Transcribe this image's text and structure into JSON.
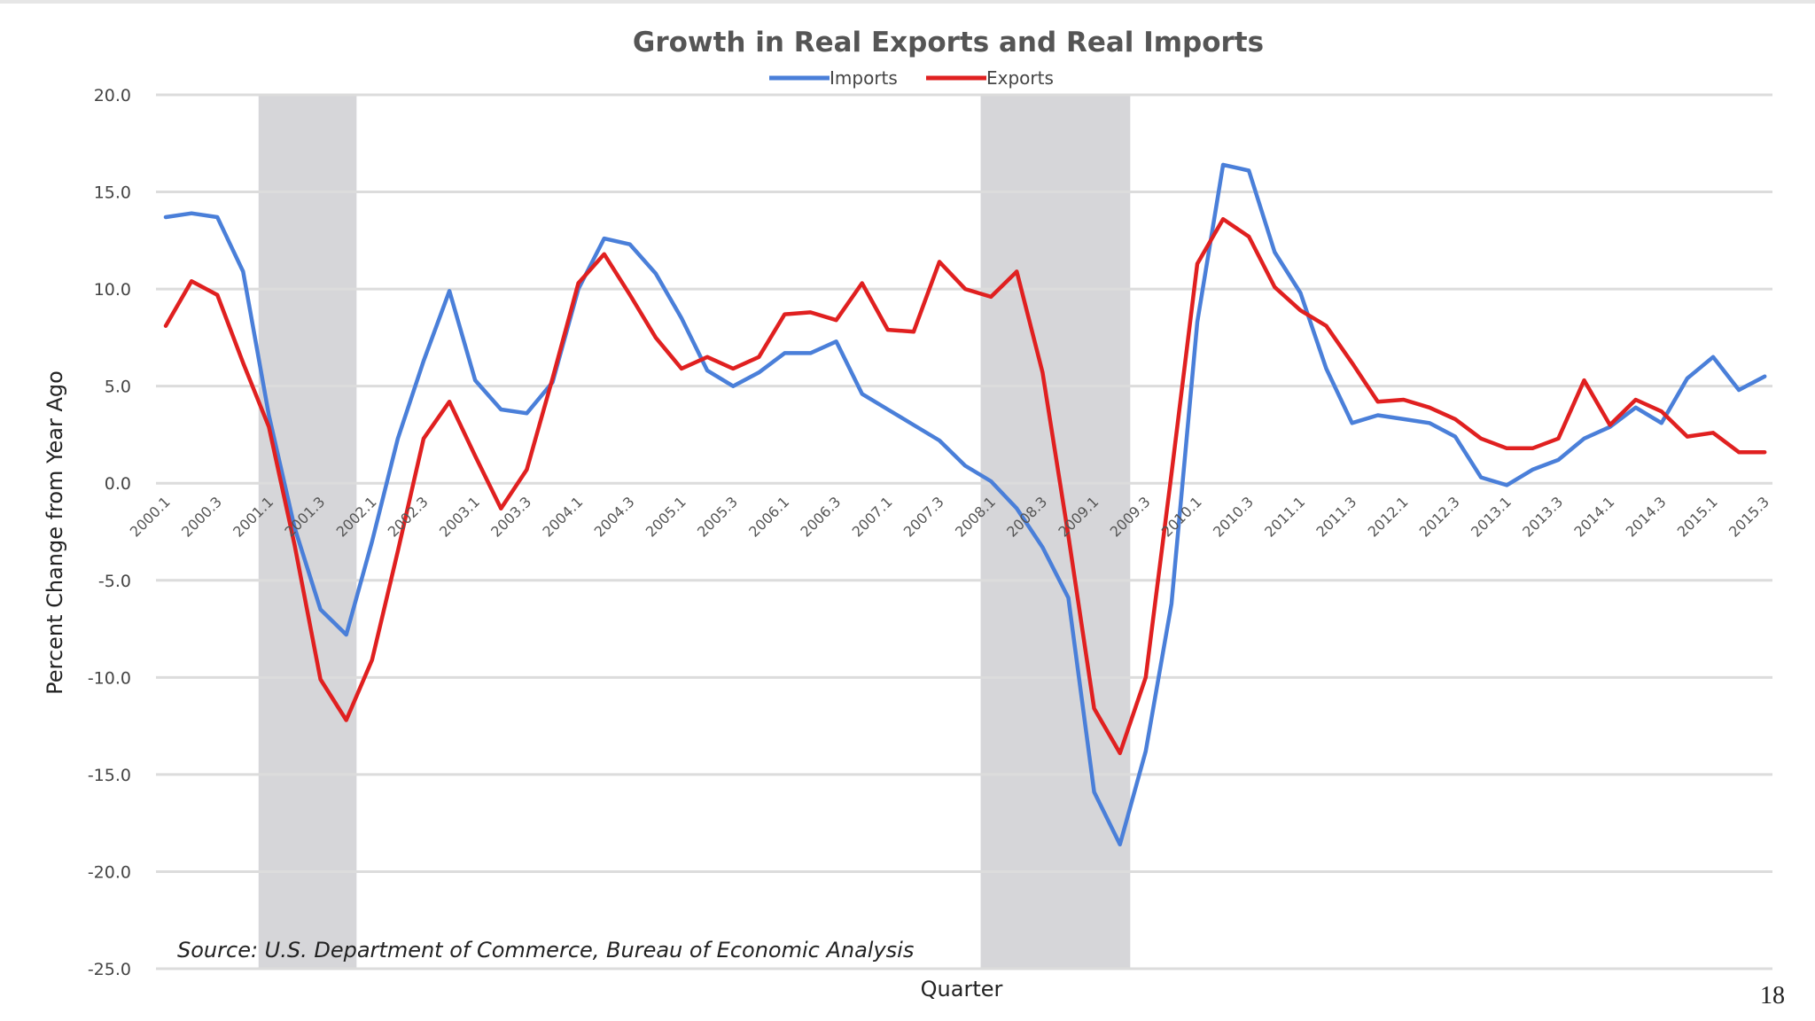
{
  "page": {
    "number": "18"
  },
  "chart_data": {
    "type": "line",
    "title": "Growth in Real Exports and Real Imports",
    "xlabel": "Quarter",
    "ylabel": "Percent Change from Year Ago",
    "ylim": [
      -25,
      20
    ],
    "yticks": [
      20,
      15,
      10,
      5,
      0,
      -5,
      -10,
      -15,
      -20,
      -25
    ],
    "ytick_labels": [
      "20.0",
      "15.0",
      "10.0",
      "5.0",
      "0.0",
      "-5.0",
      "-10.0",
      "-15.0",
      "-20.0",
      "-25.0"
    ],
    "grid": true,
    "legend_position": "top-center",
    "source": "Source: U.S. Department of Commerce, Bureau of Economic Analysis",
    "tick_labels": [
      "2000.1",
      "2000.3",
      "2001.1",
      "2001.3",
      "2002.1",
      "2002.3",
      "2003.1",
      "2003.3",
      "2004.1",
      "2004.3",
      "2005.1",
      "2005.3",
      "2006.1",
      "2006.3",
      "2007.1",
      "2007.3",
      "2008.1",
      "2008.3",
      "2009.1",
      "2009.3",
      "2010.1",
      "2010.3",
      "2011.1",
      "2011.3",
      "2012.1",
      "2012.3",
      "2013.1",
      "2013.3",
      "2014.1",
      "2014.3",
      "2015.1",
      "2015.3"
    ],
    "recessions": [
      {
        "start": "2001.1",
        "end": "2001.4"
      },
      {
        "start": "2008.1",
        "end": "2009.2"
      }
    ],
    "categories": [
      "2000.1",
      "2000.2",
      "2000.3",
      "2000.4",
      "2001.1",
      "2001.2",
      "2001.3",
      "2001.4",
      "2002.1",
      "2002.2",
      "2002.3",
      "2002.4",
      "2003.1",
      "2003.2",
      "2003.3",
      "2003.4",
      "2004.1",
      "2004.2",
      "2004.3",
      "2004.4",
      "2005.1",
      "2005.2",
      "2005.3",
      "2005.4",
      "2006.1",
      "2006.2",
      "2006.3",
      "2006.4",
      "2007.1",
      "2007.2",
      "2007.3",
      "2007.4",
      "2008.1",
      "2008.2",
      "2008.3",
      "2008.4",
      "2009.1",
      "2009.2",
      "2009.3",
      "2009.4",
      "2010.1",
      "2010.2",
      "2010.3",
      "2010.4",
      "2011.1",
      "2011.2",
      "2011.3",
      "2011.4",
      "2012.1",
      "2012.2",
      "2012.3",
      "2012.4",
      "2013.1",
      "2013.2",
      "2013.3",
      "2013.4",
      "2014.1",
      "2014.2",
      "2014.3",
      "2014.4",
      "2015.1",
      "2015.2",
      "2015.3"
    ],
    "series": [
      {
        "name": "Imports",
        "color": "#4a7fd9",
        "values": [
          13.7,
          13.9,
          13.7,
          10.9,
          3.5,
          -2.3,
          -6.5,
          -7.8,
          -3.0,
          2.3,
          6.3,
          9.9,
          5.3,
          3.8,
          3.6,
          5.2,
          10.0,
          12.6,
          12.3,
          10.8,
          8.5,
          5.8,
          5.0,
          5.7,
          6.7,
          6.7,
          7.3,
          4.6,
          3.8,
          3.0,
          2.2,
          0.9,
          0.1,
          -1.3,
          -3.3,
          -5.9,
          -15.9,
          -18.6,
          -13.8,
          -6.2,
          8.3,
          16.4,
          16.1,
          11.9,
          9.8,
          5.9,
          3.1,
          3.5,
          3.3,
          3.1,
          2.4,
          0.3,
          -0.1,
          0.7,
          1.2,
          2.3,
          2.9,
          3.9,
          3.1,
          5.4,
          6.5,
          4.8,
          5.5
        ]
      },
      {
        "name": "Exports",
        "color": "#e02020",
        "values": [
          8.1,
          10.4,
          9.7,
          6.2,
          2.9,
          -3.2,
          -10.1,
          -12.2,
          -9.1,
          -3.5,
          2.3,
          4.2,
          1.4,
          -1.3,
          0.7,
          5.4,
          10.3,
          11.8,
          9.7,
          7.5,
          5.9,
          6.5,
          5.9,
          6.5,
          8.7,
          8.8,
          8.4,
          10.3,
          7.9,
          7.8,
          11.4,
          10.0,
          9.6,
          10.9,
          5.7,
          -2.7,
          -11.6,
          -13.9,
          -10.0,
          0.5,
          11.3,
          13.6,
          12.7,
          10.1,
          8.9,
          8.1,
          6.2,
          4.2,
          4.3,
          3.9,
          3.3,
          2.3,
          1.8,
          1.8,
          2.3,
          5.3,
          3.0,
          4.3,
          3.7,
          2.4,
          2.6,
          1.6,
          1.6
        ]
      }
    ]
  }
}
